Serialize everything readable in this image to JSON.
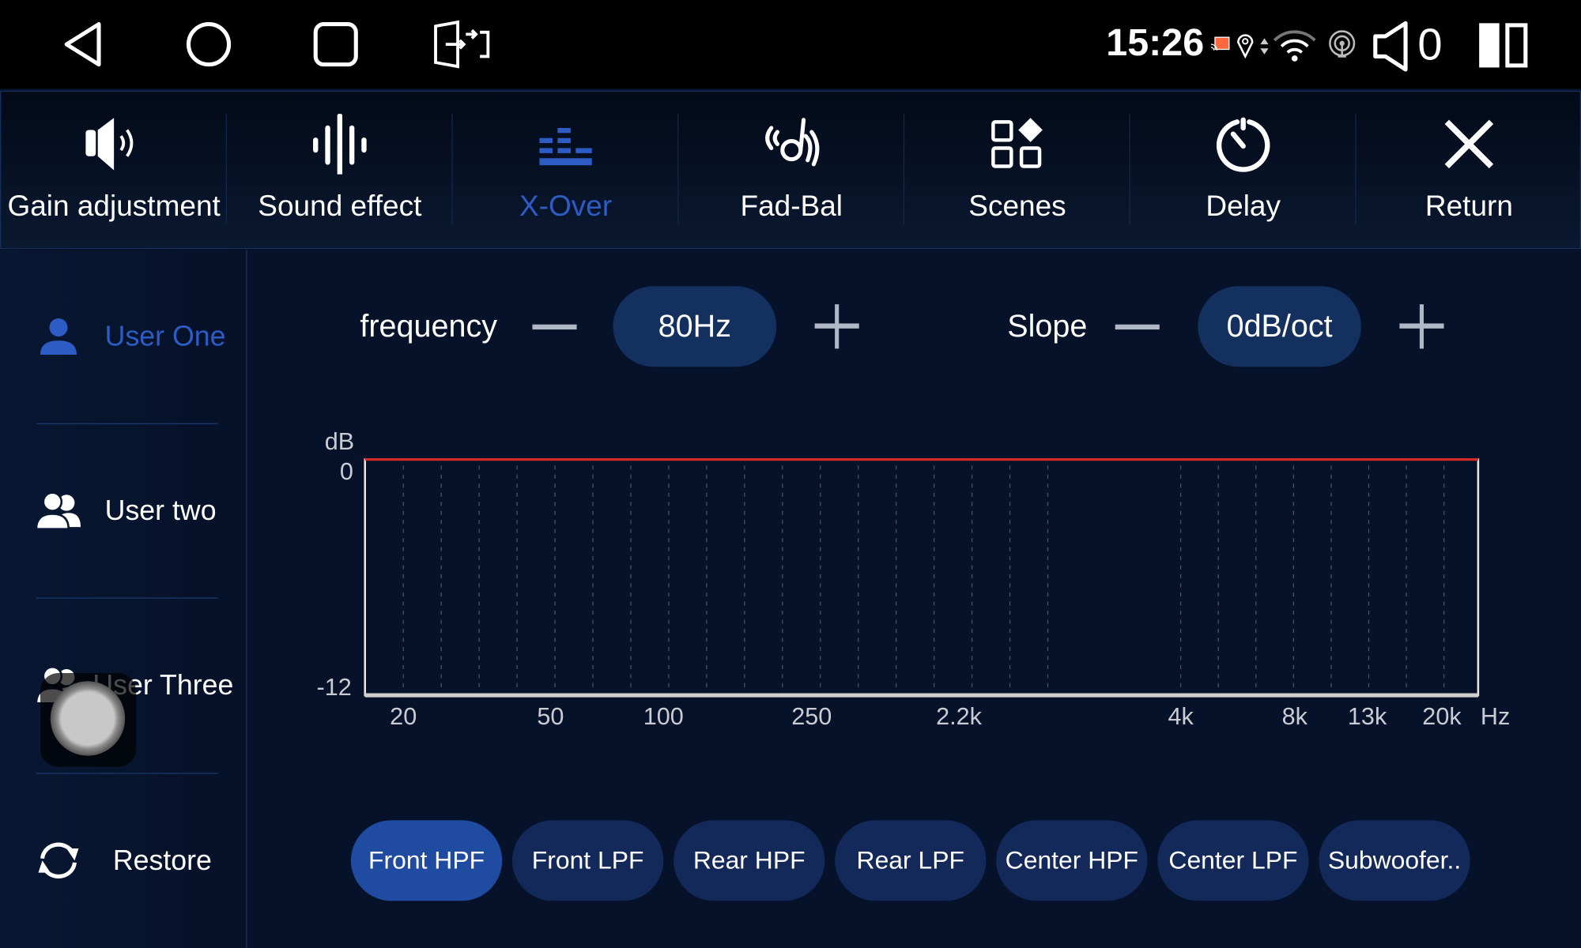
{
  "status_bar": {
    "time": "15:26",
    "volume": "0",
    "nav_icons": [
      "back-icon",
      "home-icon",
      "recents-icon",
      "screen-mirror-icon"
    ],
    "status_icons": [
      "cast-icon",
      "location-icon",
      "data-arrows-icon",
      "wifi-icon",
      "hotspot-icon",
      "speaker-icon",
      "split-screen-icon"
    ],
    "cast_color": "#ff6a3d"
  },
  "toolbar": {
    "items": [
      {
        "label": "Gain adjustment",
        "icon": "speaker-volume-icon"
      },
      {
        "label": "Sound effect",
        "icon": "sound-wave-icon"
      },
      {
        "label": "X-Over",
        "icon": "equalizer-bars-icon",
        "active": true
      },
      {
        "label": "Fad-Bal",
        "icon": "fader-balance-icon"
      },
      {
        "label": "Scenes",
        "icon": "scenes-grid-icon"
      },
      {
        "label": "Delay",
        "icon": "timer-icon"
      },
      {
        "label": "Return",
        "icon": "close-icon"
      }
    ]
  },
  "sidebar": {
    "items": [
      {
        "label": "User One",
        "icon": "user-icon",
        "active": true
      },
      {
        "label": "User two",
        "icon": "users-icon"
      },
      {
        "label": "User Three",
        "icon": "users-icon"
      },
      {
        "label": "Restore",
        "icon": "refresh-icon"
      }
    ]
  },
  "controls": {
    "frequency_label": "frequency",
    "frequency_value": "80Hz",
    "slope_label": "Slope",
    "slope_value": "0dB/oct"
  },
  "chart_data": {
    "type": "line",
    "ylabel": "dB",
    "xlabel": "Hz",
    "y_ticks": [
      "0",
      "-12"
    ],
    "ylim": [
      -12,
      0
    ],
    "x_ticks": [
      "20",
      "50",
      "100",
      "250",
      "2.2k",
      "4k",
      "8k",
      "13k",
      "20k"
    ],
    "series": [
      {
        "values": [
          0,
          0,
          0,
          0,
          0,
          0,
          0,
          0,
          0
        ]
      }
    ],
    "line_color": "#d42a2a",
    "grid": "vertical dashed"
  },
  "channels": {
    "items": [
      {
        "label": "Front HPF",
        "active": true
      },
      {
        "label": "Front LPF"
      },
      {
        "label": "Rear HPF"
      },
      {
        "label": "Rear LPF"
      },
      {
        "label": "Center HPF"
      },
      {
        "label": "Center LPF"
      },
      {
        "label": "Subwoofer.."
      }
    ]
  },
  "accent_color": "#2d5cc4"
}
